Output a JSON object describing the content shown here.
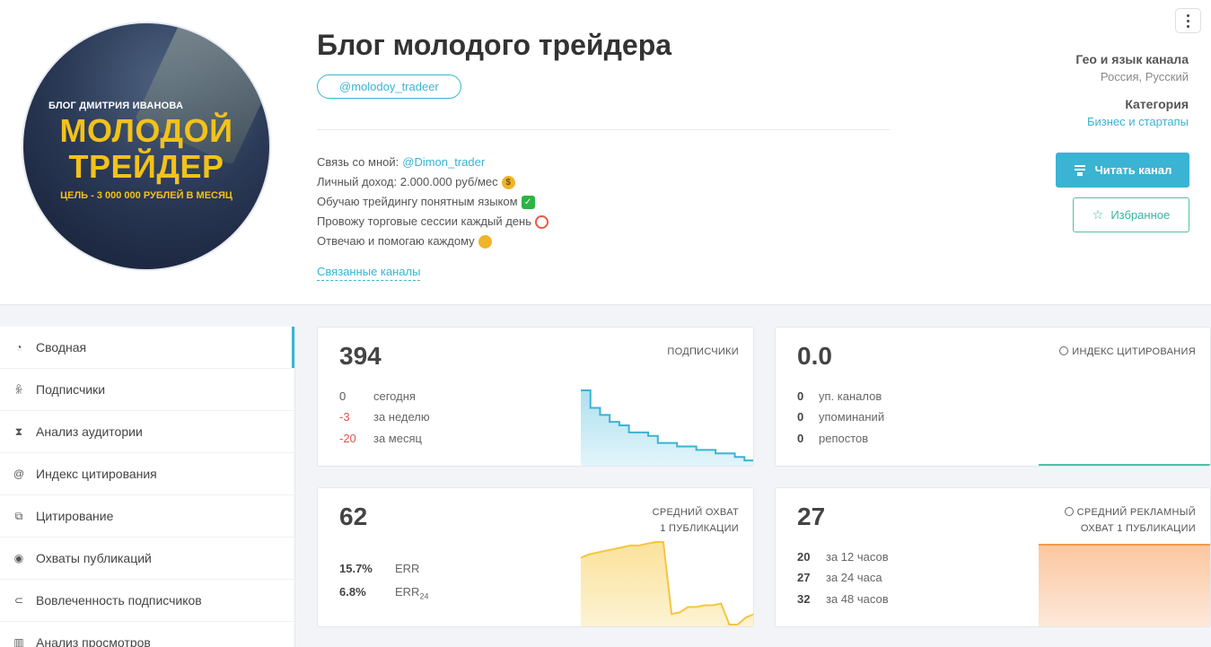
{
  "channel": {
    "avatar": {
      "line1": "БЛОГ ДМИТРИЯ ИВАНОВА",
      "line2a": "МОЛОДОЙ",
      "line2b": "ТРЕЙДЕР",
      "line3": "ЦЕЛЬ - 3 000 000 РУБЛЕЙ В МЕСЯЦ"
    },
    "title": "Блог молодого трейдера",
    "handle": "@molodoy_tradeer",
    "description": {
      "contact_label": "Связь со мной:",
      "contact_link": "@Dimon_trader",
      "line2": "Личный доход: 2.000.000 руб/мес",
      "line3": "Обучаю трейдингу понятным языком",
      "line4": "Провожу торговые сессии каждый день",
      "line5": "Отвечаю и помогаю каждому"
    },
    "related_link": "Связанные каналы"
  },
  "meta": {
    "geo_label": "Гео и язык канала",
    "geo_value": "Россия, Русский",
    "category_label": "Категория",
    "category_value": "Бизнес и стартапы"
  },
  "buttons": {
    "read": "Читать канал",
    "favorite": "Избранное"
  },
  "sidebar": {
    "items": [
      {
        "label": "Сводная",
        "icon": "dashboard-icon"
      },
      {
        "label": "Подписчики",
        "icon": "users-icon"
      },
      {
        "label": "Анализ аудитории",
        "icon": "hourglass-icon"
      },
      {
        "label": "Индекс цитирования",
        "icon": "at-icon"
      },
      {
        "label": "Цитирование",
        "icon": "quote-icon"
      },
      {
        "label": "Охваты публикаций",
        "icon": "eye-icon"
      },
      {
        "label": "Вовлеченность подписчиков",
        "icon": "engagement-icon"
      },
      {
        "label": "Анализ просмотров",
        "icon": "bar-chart-icon"
      }
    ]
  },
  "cards": {
    "subscribers": {
      "value": "394",
      "title": "ПОДПИСЧИКИ",
      "rows": [
        {
          "n": "0",
          "l": "сегодня"
        },
        {
          "n": "-3",
          "l": "за неделю"
        },
        {
          "n": "-20",
          "l": "за месяц"
        }
      ],
      "sparkline": [
        415,
        410,
        408,
        406,
        405,
        403,
        403,
        402,
        400,
        400,
        399,
        399,
        398,
        398,
        397,
        397,
        396,
        395,
        394
      ],
      "color": "#3bb3d3"
    },
    "citation": {
      "value": "0.0",
      "title": "ИНДЕКС ЦИТИРОВАНИЯ",
      "rows": [
        {
          "n": "0",
          "l": "уп. каналов"
        },
        {
          "n": "0",
          "l": "упоминаний"
        },
        {
          "n": "0",
          "l": "репостов"
        }
      ],
      "color": "#4fc1a5"
    },
    "reach": {
      "value": "62",
      "title1": "СРЕДНИЙ ОХВАТ",
      "title2": "1 ПУБЛИКАЦИИ",
      "err": "15.7%",
      "err_label": "ERR",
      "err24": "6.8%",
      "err24_label": "ERR",
      "err24_sub": "24",
      "sparkline": [
        78,
        80,
        81,
        82,
        83,
        84,
        85,
        85,
        86,
        87,
        87,
        46,
        47,
        50,
        50,
        51,
        51,
        52,
        40,
        40,
        44,
        46
      ],
      "color": "#f5c542"
    },
    "ad_reach": {
      "value": "27",
      "title1": "СРЕДНИЙ РЕКЛАМНЫЙ",
      "title2": "ОХВАТ 1 ПУБЛИКАЦИИ",
      "rows": [
        {
          "n": "20",
          "l": "за 12 часов"
        },
        {
          "n": "27",
          "l": "за 24 часа"
        },
        {
          "n": "32",
          "l": "за 48 часов"
        }
      ],
      "color": "#f59a4a"
    }
  }
}
